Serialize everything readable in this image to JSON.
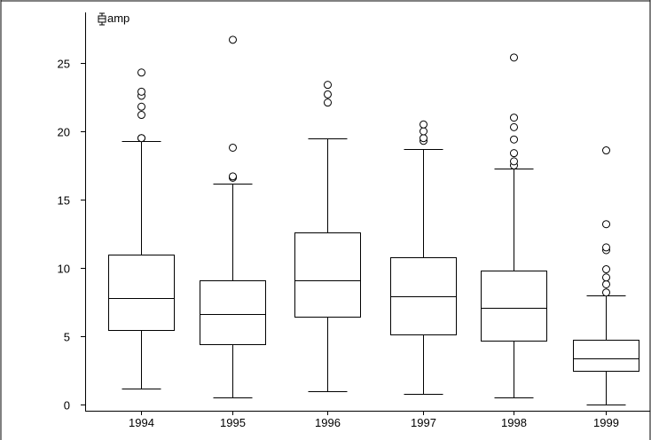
{
  "chart_data": {
    "type": "boxplot",
    "legend": {
      "label": "amp",
      "icon": "boxplot-icon",
      "placement": "top-left"
    },
    "ylim": [
      -0.5,
      28.5
    ],
    "y_ticks": [
      0,
      5,
      10,
      15,
      20,
      25
    ],
    "categories": [
      "1994",
      "1995",
      "1996",
      "1997",
      "1998",
      "1999"
    ],
    "boxes": [
      {
        "category": "1994",
        "whisker_low": 1.2,
        "q1": 5.45,
        "median": 7.8,
        "q3": 11.0,
        "whisker_high": 19.3,
        "outliers": [
          19.5,
          19.5,
          21.2,
          21.8,
          22.6,
          22.9,
          24.3
        ]
      },
      {
        "category": "1995",
        "whisker_low": 0.55,
        "q1": 4.4,
        "median": 6.6,
        "q3": 9.1,
        "whisker_high": 16.2,
        "outliers": [
          16.6,
          16.7,
          18.8,
          26.7
        ]
      },
      {
        "category": "1996",
        "whisker_low": 1.0,
        "q1": 6.45,
        "median": 9.1,
        "q3": 12.6,
        "whisker_high": 19.5,
        "outliers": [
          22.1,
          22.7,
          23.4
        ]
      },
      {
        "category": "1997",
        "whisker_low": 0.75,
        "q1": 5.15,
        "median": 7.9,
        "q3": 10.75,
        "whisker_high": 18.7,
        "outliers": [
          19.3,
          19.5,
          20.0,
          20.5
        ]
      },
      {
        "category": "1998",
        "whisker_low": 0.5,
        "q1": 4.65,
        "median": 7.1,
        "q3": 9.8,
        "whisker_high": 17.3,
        "outliers": [
          17.5,
          17.8,
          18.4,
          19.4,
          20.3,
          21.0,
          25.4
        ]
      },
      {
        "category": "1999",
        "whisker_low": 0.0,
        "q1": 2.5,
        "median": 3.35,
        "q3": 4.75,
        "whisker_high": 8.0,
        "outliers": [
          8.2,
          8.8,
          9.3,
          9.9,
          11.3,
          11.5,
          13.2,
          18.6
        ]
      }
    ],
    "grid": false,
    "colors": {
      "line": "#000000",
      "box_fill": "#ffffff",
      "background": "#ffffff"
    }
  }
}
